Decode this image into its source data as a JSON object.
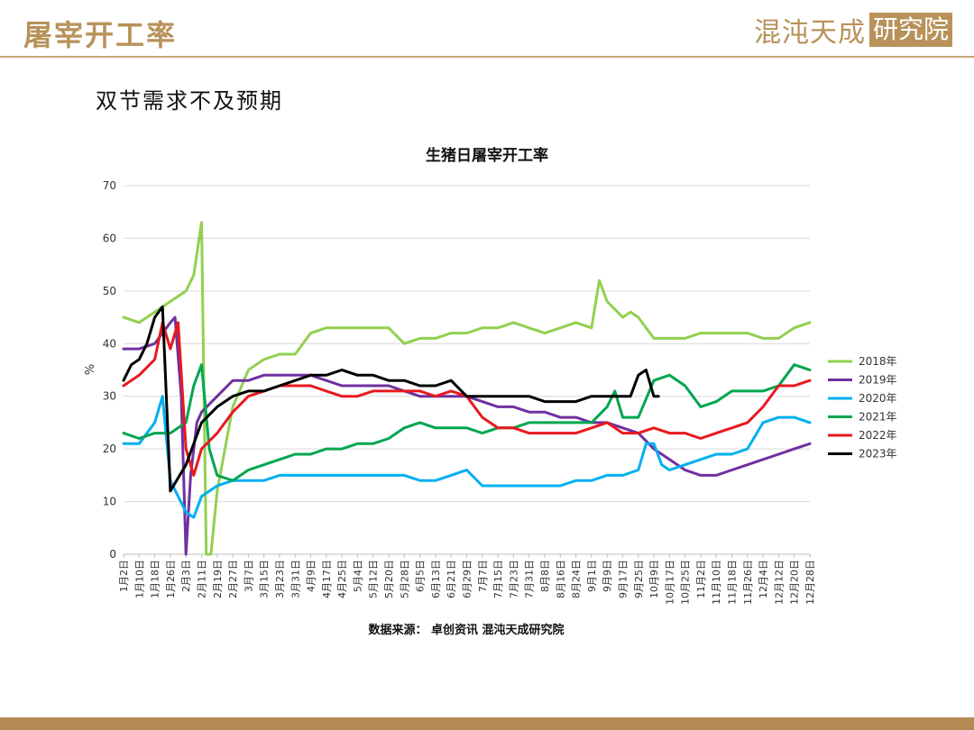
{
  "header": {
    "title": "屠宰开工率",
    "logo_text": "混沌天成",
    "logo_box_text": "研究院"
  },
  "slide": {
    "subtitle": "双节需求不及预期"
  },
  "colors": {
    "accent": "#b8925a",
    "bar": "#b48a52"
  },
  "chart_data": {
    "type": "line",
    "title": "生猪日屠宰开工率",
    "ylabel": "%",
    "source": "数据来源：  卓创资讯 混沌天成研究院",
    "ylim": [
      0,
      70
    ],
    "yticks": [
      0,
      10,
      20,
      30,
      40,
      50,
      60,
      70
    ],
    "grid": true,
    "legend_position": "right",
    "x_tick_labels": [
      "1月2日",
      "1月10日",
      "1月18日",
      "1月26日",
      "2月3日",
      "2月11日",
      "2月19日",
      "2月27日",
      "3月7日",
      "3月15日",
      "3月23日",
      "3月31日",
      "4月9日",
      "4月17日",
      "4月25日",
      "5月4日",
      "5月12日",
      "5月20日",
      "5月28日",
      "6月5日",
      "6月13日",
      "6月21日",
      "6月29日",
      "7月7日",
      "7月15日",
      "7月23日",
      "7月31日",
      "8月8日",
      "8月16日",
      "8月24日",
      "9月1日",
      "9月9日",
      "9月17日",
      "9月25日",
      "10月9日",
      "10月17日",
      "10月25日",
      "11月2日",
      "11月10日",
      "11月18日",
      "11月26日",
      "12月4日",
      "12月12日",
      "12月20日",
      "12月28日"
    ],
    "series": [
      {
        "name": "2018年",
        "color": "#92d050",
        "points": [
          [
            0,
            45
          ],
          [
            1,
            44
          ],
          [
            2,
            46
          ],
          [
            3,
            48
          ],
          [
            4,
            50
          ],
          [
            4.5,
            53
          ],
          [
            5,
            63
          ],
          [
            5.3,
            0
          ],
          [
            5.6,
            0
          ],
          [
            6,
            12
          ],
          [
            7,
            28
          ],
          [
            8,
            35
          ],
          [
            9,
            37
          ],
          [
            10,
            38
          ],
          [
            11,
            38
          ],
          [
            12,
            42
          ],
          [
            13,
            43
          ],
          [
            14,
            43
          ],
          [
            15,
            43
          ],
          [
            16,
            43
          ],
          [
            17,
            43
          ],
          [
            18,
            40
          ],
          [
            19,
            41
          ],
          [
            20,
            41
          ],
          [
            21,
            42
          ],
          [
            22,
            42
          ],
          [
            23,
            43
          ],
          [
            24,
            43
          ],
          [
            25,
            44
          ],
          [
            26,
            43
          ],
          [
            27,
            42
          ],
          [
            28,
            43
          ],
          [
            29,
            44
          ],
          [
            30,
            43
          ],
          [
            30.5,
            52
          ],
          [
            31,
            48
          ],
          [
            32,
            45
          ],
          [
            32.5,
            46
          ],
          [
            33,
            45
          ],
          [
            34,
            41
          ],
          [
            35,
            41
          ],
          [
            36,
            41
          ],
          [
            37,
            42
          ],
          [
            38,
            42
          ],
          [
            39,
            42
          ],
          [
            40,
            42
          ],
          [
            41,
            41
          ],
          [
            42,
            41
          ],
          [
            43,
            43
          ],
          [
            44,
            44
          ]
        ]
      },
      {
        "name": "2019年",
        "color": "#7030a0",
        "points": [
          [
            0,
            39
          ],
          [
            1,
            39
          ],
          [
            2,
            40
          ],
          [
            3,
            44
          ],
          [
            3.3,
            45
          ],
          [
            3.7,
            30
          ],
          [
            4,
            0
          ],
          [
            4.3,
            15
          ],
          [
            4.7,
            25
          ],
          [
            5,
            27
          ],
          [
            6,
            30
          ],
          [
            7,
            33
          ],
          [
            8,
            33
          ],
          [
            9,
            34
          ],
          [
            10,
            34
          ],
          [
            11,
            34
          ],
          [
            12,
            34
          ],
          [
            13,
            33
          ],
          [
            14,
            32
          ],
          [
            15,
            32
          ],
          [
            16,
            32
          ],
          [
            17,
            32
          ],
          [
            18,
            31
          ],
          [
            19,
            30
          ],
          [
            20,
            30
          ],
          [
            21,
            30
          ],
          [
            22,
            30
          ],
          [
            23,
            29
          ],
          [
            24,
            28
          ],
          [
            25,
            28
          ],
          [
            26,
            27
          ],
          [
            27,
            27
          ],
          [
            28,
            26
          ],
          [
            29,
            26
          ],
          [
            30,
            25
          ],
          [
            31,
            25
          ],
          [
            32,
            24
          ],
          [
            33,
            23
          ],
          [
            34,
            20
          ],
          [
            35,
            18
          ],
          [
            36,
            16
          ],
          [
            37,
            15
          ],
          [
            38,
            15
          ],
          [
            39,
            16
          ],
          [
            40,
            17
          ],
          [
            41,
            18
          ],
          [
            42,
            19
          ],
          [
            43,
            20
          ],
          [
            44,
            21
          ]
        ]
      },
      {
        "name": "2020年",
        "color": "#00b0f0",
        "points": [
          [
            0,
            21
          ],
          [
            1,
            21
          ],
          [
            2,
            25
          ],
          [
            2.5,
            30
          ],
          [
            3,
            14
          ],
          [
            4,
            8
          ],
          [
            4.5,
            7
          ],
          [
            5,
            11
          ],
          [
            6,
            13
          ],
          [
            7,
            14
          ],
          [
            8,
            14
          ],
          [
            9,
            14
          ],
          [
            10,
            15
          ],
          [
            11,
            15
          ],
          [
            12,
            15
          ],
          [
            13,
            15
          ],
          [
            14,
            15
          ],
          [
            15,
            15
          ],
          [
            16,
            15
          ],
          [
            17,
            15
          ],
          [
            18,
            15
          ],
          [
            19,
            14
          ],
          [
            20,
            14
          ],
          [
            21,
            15
          ],
          [
            22,
            16
          ],
          [
            23,
            13
          ],
          [
            24,
            13
          ],
          [
            25,
            13
          ],
          [
            26,
            13
          ],
          [
            27,
            13
          ],
          [
            28,
            13
          ],
          [
            29,
            14
          ],
          [
            30,
            14
          ],
          [
            31,
            15
          ],
          [
            32,
            15
          ],
          [
            33,
            16
          ],
          [
            33.5,
            21
          ],
          [
            34,
            21
          ],
          [
            34.5,
            17
          ],
          [
            35,
            16
          ],
          [
            36,
            17
          ],
          [
            37,
            18
          ],
          [
            38,
            19
          ],
          [
            39,
            19
          ],
          [
            40,
            20
          ],
          [
            41,
            25
          ],
          [
            42,
            26
          ],
          [
            43,
            26
          ],
          [
            44,
            25
          ]
        ]
      },
      {
        "name": "2021年",
        "color": "#00a650",
        "points": [
          [
            0,
            23
          ],
          [
            1,
            22
          ],
          [
            2,
            23
          ],
          [
            3,
            23
          ],
          [
            4,
            25
          ],
          [
            4.5,
            32
          ],
          [
            5,
            36
          ],
          [
            5.5,
            20
          ],
          [
            6,
            15
          ],
          [
            7,
            14
          ],
          [
            8,
            16
          ],
          [
            9,
            17
          ],
          [
            10,
            18
          ],
          [
            11,
            19
          ],
          [
            12,
            19
          ],
          [
            13,
            20
          ],
          [
            14,
            20
          ],
          [
            15,
            21
          ],
          [
            16,
            21
          ],
          [
            17,
            22
          ],
          [
            18,
            24
          ],
          [
            19,
            25
          ],
          [
            20,
            24
          ],
          [
            21,
            24
          ],
          [
            22,
            24
          ],
          [
            23,
            23
          ],
          [
            24,
            24
          ],
          [
            25,
            24
          ],
          [
            26,
            25
          ],
          [
            27,
            25
          ],
          [
            28,
            25
          ],
          [
            29,
            25
          ],
          [
            30,
            25
          ],
          [
            31,
            28
          ],
          [
            31.5,
            31
          ],
          [
            32,
            26
          ],
          [
            33,
            26
          ],
          [
            34,
            33
          ],
          [
            35,
            34
          ],
          [
            36,
            32
          ],
          [
            37,
            28
          ],
          [
            38,
            29
          ],
          [
            39,
            31
          ],
          [
            40,
            31
          ],
          [
            41,
            31
          ],
          [
            42,
            32
          ],
          [
            43,
            36
          ],
          [
            44,
            35
          ]
        ]
      },
      {
        "name": "2022年",
        "color": "#e8191e",
        "points": [
          [
            0,
            32
          ],
          [
            1,
            34
          ],
          [
            2,
            37
          ],
          [
            2.5,
            44
          ],
          [
            3,
            39
          ],
          [
            3.5,
            44
          ],
          [
            4,
            20
          ],
          [
            4.5,
            15
          ],
          [
            5,
            20
          ],
          [
            6,
            23
          ],
          [
            7,
            27
          ],
          [
            8,
            30
          ],
          [
            9,
            31
          ],
          [
            10,
            32
          ],
          [
            11,
            32
          ],
          [
            12,
            32
          ],
          [
            13,
            31
          ],
          [
            14,
            30
          ],
          [
            15,
            30
          ],
          [
            16,
            31
          ],
          [
            17,
            31
          ],
          [
            18,
            31
          ],
          [
            19,
            31
          ],
          [
            20,
            30
          ],
          [
            21,
            31
          ],
          [
            22,
            30
          ],
          [
            23,
            26
          ],
          [
            24,
            24
          ],
          [
            25,
            24
          ],
          [
            26,
            23
          ],
          [
            27,
            23
          ],
          [
            28,
            23
          ],
          [
            29,
            23
          ],
          [
            30,
            24
          ],
          [
            31,
            25
          ],
          [
            32,
            23
          ],
          [
            33,
            23
          ],
          [
            34,
            24
          ],
          [
            35,
            23
          ],
          [
            36,
            23
          ],
          [
            37,
            22
          ],
          [
            38,
            23
          ],
          [
            39,
            24
          ],
          [
            40,
            25
          ],
          [
            41,
            28
          ],
          [
            42,
            32
          ],
          [
            43,
            32
          ],
          [
            44,
            33
          ]
        ]
      },
      {
        "name": "2023年",
        "color": "#000000",
        "points": [
          [
            0,
            33
          ],
          [
            0.5,
            36
          ],
          [
            1,
            37
          ],
          [
            1.5,
            40
          ],
          [
            2,
            45
          ],
          [
            2.5,
            47
          ],
          [
            3,
            12
          ],
          [
            4,
            17
          ],
          [
            5,
            25
          ],
          [
            6,
            28
          ],
          [
            7,
            30
          ],
          [
            8,
            31
          ],
          [
            9,
            31
          ],
          [
            10,
            32
          ],
          [
            11,
            33
          ],
          [
            12,
            34
          ],
          [
            13,
            34
          ],
          [
            14,
            35
          ],
          [
            15,
            34
          ],
          [
            16,
            34
          ],
          [
            17,
            33
          ],
          [
            18,
            33
          ],
          [
            19,
            32
          ],
          [
            20,
            32
          ],
          [
            21,
            33
          ],
          [
            22,
            30
          ],
          [
            23,
            30
          ],
          [
            24,
            30
          ],
          [
            25,
            30
          ],
          [
            26,
            30
          ],
          [
            27,
            29
          ],
          [
            28,
            29
          ],
          [
            29,
            29
          ],
          [
            30,
            30
          ],
          [
            31,
            30
          ],
          [
            32,
            30
          ],
          [
            32.5,
            30
          ],
          [
            33,
            34
          ],
          [
            33.5,
            35
          ],
          [
            34,
            30
          ],
          [
            34.3,
            30
          ]
        ]
      }
    ]
  }
}
